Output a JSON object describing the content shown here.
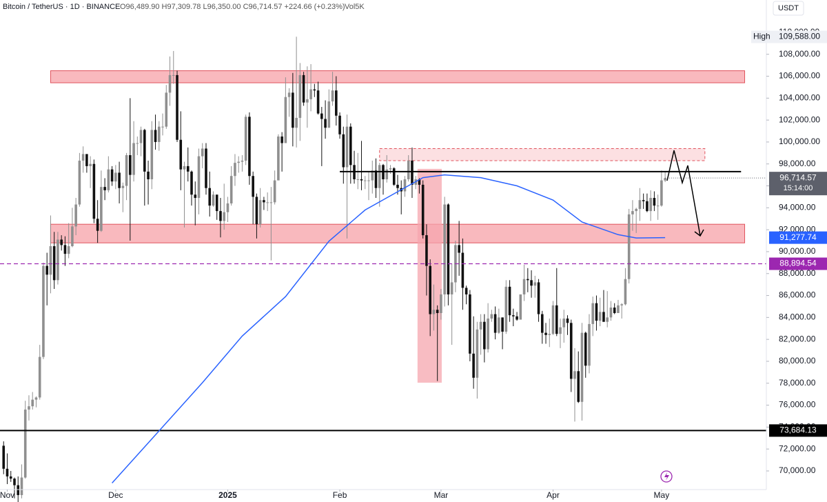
{
  "header": {
    "symbol": "Bitcoin / TetherUS · 1D · BINANCE",
    "ohlc": "O96,489.90 H97,309.78 L96,350.00 C96,714.57 +224.66 (+0.23%)",
    "volume": "Vol5K",
    "currency": "USDT"
  },
  "chart_data": {
    "type": "candlestick",
    "up_color": "#8f8f8f",
    "down_color": "#111111",
    "xlim": [
      -1,
      211
    ],
    "xticks": [
      {
        "value": 1,
        "label": "Nov"
      },
      {
        "value": 31,
        "label": "Dec"
      },
      {
        "value": 62,
        "label": "2025"
      },
      {
        "value": 93,
        "label": "Feb"
      },
      {
        "value": 121,
        "label": "Mar"
      },
      {
        "value": 152,
        "label": "Apr"
      },
      {
        "value": 182,
        "label": "May"
      }
    ],
    "ylim": [
      68300,
      112950
    ],
    "yticks": [
      {
        "value": 70000,
        "label": "70,000.00"
      },
      {
        "value": 72000,
        "label": "72,000.00"
      },
      {
        "value": 74000,
        "label": "74,000.00"
      },
      {
        "value": 76000,
        "label": "76,000.00"
      },
      {
        "value": 78000,
        "label": "78,000.00"
      },
      {
        "value": 80000,
        "label": "80,000.00"
      },
      {
        "value": 82000,
        "label": "82,000.00"
      },
      {
        "value": 84000,
        "label": "84,000.00"
      },
      {
        "value": 86000,
        "label": "86,000.00"
      },
      {
        "value": 88000,
        "label": "88,000.00"
      },
      {
        "value": 90000,
        "label": "90,000.00"
      },
      {
        "value": 92000,
        "label": "92,000.00"
      },
      {
        "value": 94000,
        "label": "94,000.00"
      },
      {
        "value": 96000,
        "label": "96,000.00"
      },
      {
        "value": 98000,
        "label": "98,000.00"
      },
      {
        "value": 100000,
        "label": "100,000.00"
      },
      {
        "value": 102000,
        "label": "102,000.00"
      },
      {
        "value": 104000,
        "label": "104,000.00"
      },
      {
        "value": 106000,
        "label": "106,000.00"
      },
      {
        "value": 108000,
        "label": "108,000.00"
      },
      {
        "value": 110000,
        "label": "110,000.00"
      }
    ],
    "ohlc": [
      [
        72300,
        72700,
        69700,
        70200
      ],
      [
        70200,
        71600,
        68800,
        69500
      ],
      [
        69500,
        70000,
        69000,
        69300
      ],
      [
        69300,
        69400,
        67500,
        68700
      ],
      [
        68700,
        69500,
        66800,
        67800
      ],
      [
        67800,
        70600,
        67500,
        69400
      ],
      [
        69400,
        76400,
        69300,
        75600
      ],
      [
        75600,
        76900,
        74600,
        75900
      ],
      [
        75900,
        77200,
        75600,
        76500
      ],
      [
        76500,
        76800,
        75800,
        76700
      ],
      [
        76700,
        81500,
        76500,
        80400
      ],
      [
        80400,
        89000,
        80200,
        88700
      ],
      [
        88700,
        89900,
        85100,
        87900
      ],
      [
        87900,
        93300,
        86200,
        90500
      ],
      [
        90500,
        91800,
        86600,
        87400
      ],
      [
        87400,
        91800,
        87000,
        91100
      ],
      [
        91100,
        91500,
        90100,
        90600
      ],
      [
        90600,
        91400,
        88700,
        89800
      ],
      [
        89800,
        92600,
        89400,
        90500
      ],
      [
        90500,
        94000,
        90400,
        92300
      ],
      [
        92300,
        94900,
        91500,
        94300
      ],
      [
        94300,
        99000,
        94100,
        98300
      ],
      [
        98300,
        99600,
        97200,
        98900
      ],
      [
        98900,
        98900,
        97200,
        97800
      ],
      [
        97800,
        98700,
        95800,
        98000
      ],
      [
        98000,
        98400,
        92600,
        93000
      ],
      [
        93000,
        94700,
        90800,
        91900
      ],
      [
        91900,
        97400,
        91800,
        95900
      ],
      [
        95900,
        96700,
        94700,
        95600
      ],
      [
        95600,
        98700,
        95400,
        97500
      ],
      [
        97500,
        97800,
        96000,
        96400
      ],
      [
        96400,
        97900,
        95700,
        97200
      ],
      [
        97200,
        98200,
        94400,
        95800
      ],
      [
        95800,
        96300,
        93600,
        96000
      ],
      [
        96000,
        99000,
        94700,
        98800
      ],
      [
        98800,
        104000,
        91000,
        97000
      ],
      [
        97000,
        101900,
        96400,
        99900
      ],
      [
        99900,
        100500,
        98800,
        99900
      ],
      [
        99900,
        101400,
        98700,
        101100
      ],
      [
        101100,
        101200,
        94200,
        97300
      ],
      [
        97300,
        98300,
        94300,
        96600
      ],
      [
        96600,
        101900,
        95700,
        101100
      ],
      [
        101100,
        102500,
        99300,
        100000
      ],
      [
        100000,
        101900,
        99200,
        101400
      ],
      [
        101400,
        102600,
        100600,
        101400
      ],
      [
        101400,
        105200,
        101200,
        104500
      ],
      [
        104500,
        107800,
        103300,
        106100
      ],
      [
        106100,
        108300,
        105300,
        106100
      ],
      [
        106100,
        106500,
        100000,
        100200
      ],
      [
        100200,
        102800,
        95600,
        97500
      ],
      [
        97500,
        98200,
        92200,
        97800
      ],
      [
        97800,
        99500,
        96400,
        97300
      ],
      [
        97300,
        97400,
        94200,
        95200
      ],
      [
        95200,
        96400,
        92400,
        94900
      ],
      [
        94900,
        99400,
        93400,
        98700
      ],
      [
        98700,
        99900,
        97600,
        99400
      ],
      [
        99400,
        99900,
        95200,
        95800
      ],
      [
        95800,
        97300,
        93200,
        94200
      ],
      [
        94200,
        95500,
        94100,
        95200
      ],
      [
        95200,
        95200,
        92900,
        93700
      ],
      [
        93700,
        94900,
        91300,
        92800
      ],
      [
        92800,
        96200,
        92000,
        93600
      ],
      [
        93600,
        95000,
        92700,
        94400
      ],
      [
        94400,
        97800,
        94200,
        96900
      ],
      [
        96900,
        98900,
        96000,
        98100
      ],
      [
        98100,
        98700,
        97200,
        98200
      ],
      [
        98200,
        98800,
        97300,
        98300
      ],
      [
        98300,
        102500,
        97900,
        102300
      ],
      [
        102300,
        102700,
        96100,
        96900
      ],
      [
        96900,
        97300,
        92500,
        95000
      ],
      [
        95000,
        95300,
        91200,
        92500
      ],
      [
        92500,
        95800,
        92200,
        94700
      ],
      [
        94700,
        95000,
        93800,
        94500
      ],
      [
        94500,
        95400,
        93700,
        94500
      ],
      [
        94500,
        95900,
        89200,
        94500
      ],
      [
        94500,
        97400,
        94300,
        96500
      ],
      [
        96500,
        100700,
        96500,
        100500
      ],
      [
        100500,
        100900,
        97300,
        99900
      ],
      [
        99900,
        105900,
        99900,
        104100
      ],
      [
        104100,
        104900,
        102300,
        104500
      ],
      [
        104500,
        106300,
        99600,
        101300
      ],
      [
        101300,
        109600,
        99500,
        102200
      ],
      [
        102200,
        107200,
        100100,
        106100
      ],
      [
        106100,
        106400,
        103300,
        103600
      ],
      [
        103600,
        106900,
        101300,
        103900
      ],
      [
        103900,
        107100,
        102800,
        104800
      ],
      [
        104800,
        105300,
        104100,
        104700
      ],
      [
        104700,
        105500,
        102500,
        102600
      ],
      [
        102600,
        103200,
        97800,
        102100
      ],
      [
        102100,
        103800,
        100300,
        101300
      ],
      [
        101300,
        104800,
        101300,
        103700
      ],
      [
        103700,
        106400,
        103300,
        104700
      ],
      [
        104700,
        106000,
        101500,
        102400
      ],
      [
        102400,
        102700,
        100300,
        100700
      ],
      [
        100700,
        101400,
        96200,
        97700
      ],
      [
        97700,
        102500,
        91200,
        101400
      ],
      [
        101400,
        101700,
        96200,
        97900
      ],
      [
        97900,
        99200,
        96200,
        96600
      ],
      [
        96600,
        99000,
        95700,
        96600
      ],
      [
        96600,
        100100,
        95600,
        96500
      ],
      [
        96500,
        96900,
        95700,
        96500
      ],
      [
        96500,
        97300,
        94700,
        96500
      ],
      [
        96500,
        98300,
        95300,
        97400
      ],
      [
        97400,
        98500,
        94900,
        95800
      ],
      [
        95800,
        98100,
        94100,
        97900
      ],
      [
        97900,
        98000,
        95200,
        96600
      ],
      [
        96600,
        98800,
        96300,
        97500
      ],
      [
        97500,
        97900,
        97100,
        97600
      ],
      [
        97600,
        97700,
        96000,
        96100
      ],
      [
        96100,
        97000,
        95200,
        95800
      ],
      [
        95800,
        96500,
        93400,
        95500
      ],
      [
        95500,
        96900,
        95000,
        96600
      ],
      [
        96600,
        98800,
        96400,
        98300
      ],
      [
        98300,
        99500,
        94900,
        96100
      ],
      [
        96100,
        96900,
        95700,
        96600
      ],
      [
        96600,
        96700,
        95300,
        96100
      ],
      [
        96100,
        96500,
        91200,
        91500
      ],
      [
        91500,
        92500,
        86000,
        88700
      ],
      [
        88700,
        89300,
        82300,
        84300
      ],
      [
        84300,
        87000,
        82800,
        84700
      ],
      [
        84700,
        85100,
        78200,
        84400
      ],
      [
        84400,
        86600,
        83800,
        86100
      ],
      [
        86100,
        95000,
        85000,
        94300
      ],
      [
        94300,
        94400,
        85100,
        86100
      ],
      [
        86100,
        88900,
        81500,
        87200
      ],
      [
        87200,
        91000,
        86300,
        90600
      ],
      [
        90600,
        92800,
        87800,
        89900
      ],
      [
        89900,
        91200,
        84700,
        86700
      ],
      [
        86700,
        86900,
        85200,
        86100
      ],
      [
        86100,
        86500,
        80000,
        80700
      ],
      [
        80700,
        84100,
        77500,
        78500
      ],
      [
        78500,
        83600,
        76600,
        82900
      ],
      [
        82900,
        84300,
        80600,
        83600
      ],
      [
        83600,
        84300,
        79900,
        81100
      ],
      [
        81100,
        85300,
        80800,
        83900
      ],
      [
        83900,
        84700,
        83600,
        84300
      ],
      [
        84300,
        85000,
        82000,
        82600
      ],
      [
        82600,
        84800,
        82500,
        84000
      ],
      [
        84000,
        84000,
        81100,
        82700
      ],
      [
        82700,
        87400,
        82500,
        86800
      ],
      [
        86800,
        87400,
        83600,
        84200
      ],
      [
        84200,
        84800,
        83200,
        84100
      ],
      [
        84100,
        84500,
        83700,
        83800
      ],
      [
        83800,
        86100,
        83800,
        86100
      ],
      [
        86100,
        88800,
        85500,
        87500
      ],
      [
        87500,
        88500,
        86300,
        87400
      ],
      [
        87400,
        88300,
        85800,
        86900
      ],
      [
        86900,
        87800,
        85800,
        87200
      ],
      [
        87200,
        87500,
        83600,
        84300
      ],
      [
        84300,
        84600,
        81600,
        82600
      ],
      [
        82600,
        83500,
        81600,
        82400
      ],
      [
        82400,
        83900,
        81300,
        82500
      ],
      [
        82500,
        85500,
        82400,
        85100
      ],
      [
        85100,
        88500,
        82300,
        82500
      ],
      [
        82500,
        83900,
        81200,
        83100
      ],
      [
        83100,
        84700,
        81700,
        83900
      ],
      [
        83900,
        84200,
        82400,
        83500
      ],
      [
        83500,
        83800,
        77200,
        78400
      ],
      [
        78400,
        81200,
        74500,
        79100
      ],
      [
        79100,
        80900,
        76200,
        76300
      ],
      [
        76300,
        83500,
        74600,
        82600
      ],
      [
        82600,
        82700,
        78500,
        79600
      ],
      [
        79600,
        84300,
        78900,
        83400
      ],
      [
        83400,
        85900,
        82300,
        85300
      ],
      [
        85300,
        86000,
        82800,
        83700
      ],
      [
        83700,
        85800,
        83200,
        84500
      ],
      [
        84500,
        86500,
        83600,
        83600
      ],
      [
        83600,
        86400,
        83100,
        84000
      ],
      [
        84000,
        85500,
        83700,
        84900
      ],
      [
        84900,
        85300,
        84300,
        84400
      ],
      [
        84400,
        85600,
        84400,
        85100
      ],
      [
        85100,
        85300,
        83900,
        85200
      ],
      [
        85200,
        88500,
        85100,
        87500
      ],
      [
        87500,
        93900,
        87100,
        93400
      ],
      [
        93400,
        94700,
        91900,
        93700
      ],
      [
        93700,
        94000,
        91700,
        93900
      ],
      [
        93900,
        95800,
        92800,
        94700
      ],
      [
        94700,
        95300,
        93900,
        94600
      ],
      [
        94600,
        95300,
        93600,
        93700
      ],
      [
        93700,
        95600,
        92800,
        94900
      ],
      [
        94900,
        95500,
        93700,
        94200
      ],
      [
        94200,
        95200,
        92900,
        94200
      ],
      [
        94200,
        97400,
        94100,
        96500
      ],
      [
        96489.9,
        97309.78,
        96350,
        96714.57
      ]
    ],
    "last_price_label": "96,714.57",
    "countdown": "15:14:00",
    "last_price_color": "#5d606b",
    "high": {
      "name": "High",
      "value": 109588,
      "label": "109,588.00"
    },
    "moving_average": {
      "color": "#2962ff",
      "x": [
        30,
        43,
        55,
        66,
        78,
        90,
        100,
        110,
        116,
        122,
        132,
        142,
        152,
        160,
        170,
        175,
        183
      ],
      "values": [
        68900,
        73650,
        78050,
        82300,
        85900,
        90950,
        93800,
        95650,
        96750,
        97000,
        96750,
        96000,
        94700,
        92700,
        91550,
        91250,
        91277.74
      ],
      "last_label": "91,277.74"
    },
    "zones": [
      {
        "from": 105400,
        "to": 106500,
        "start": 13,
        "end": 205,
        "color": "#f7a1a8",
        "border": "#e0525c",
        "style": "solid"
      },
      {
        "from": 90800,
        "to": 92500,
        "start": 13,
        "end": 205,
        "color": "#f7a1a8",
        "border": "#e0525c",
        "style": "solid"
      },
      {
        "from": 98300,
        "to": 99400,
        "start": 104,
        "end": 194,
        "color": "#fbd5d8",
        "border": "#e0525c",
        "style": "dashed"
      },
      {
        "from": 78050,
        "to": 97550,
        "start": 114.5,
        "end": 121.2,
        "color": "#f6a6ad",
        "style": "none"
      }
    ],
    "levels": [
      {
        "value": 97300,
        "start": 93,
        "end": 204,
        "color": "#000000",
        "style": "solid"
      },
      {
        "value": 88894.54,
        "label": "88,894.54",
        "color": "#9c27b0",
        "style": "dashed"
      },
      {
        "value": 73684.13,
        "label": "73,684.13",
        "color": "#000000",
        "style": "solid"
      }
    ]
  }
}
